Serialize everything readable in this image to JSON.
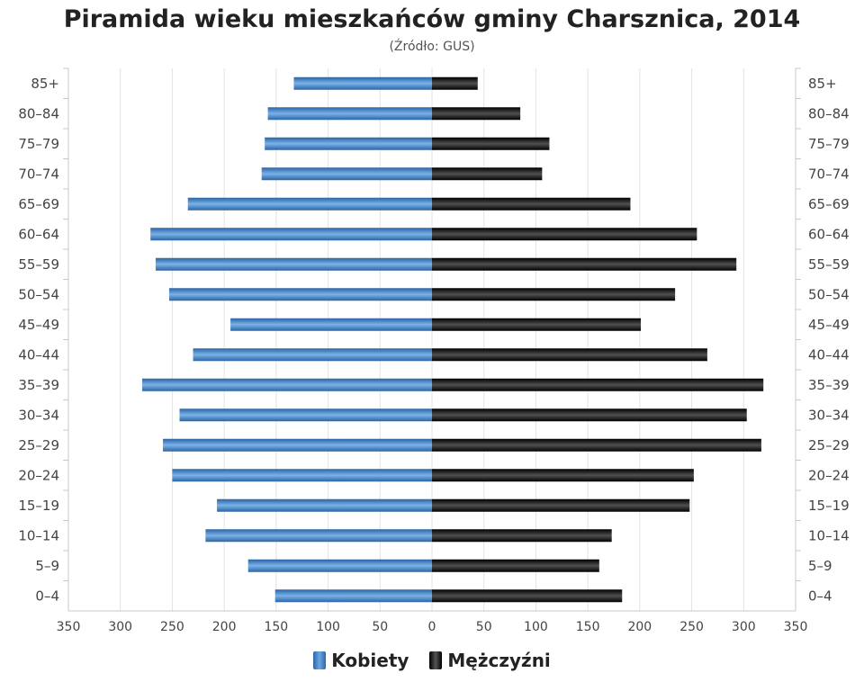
{
  "chart_data": {
    "type": "bar",
    "orientation": "horizontal",
    "title": "Piramida wieku mieszkańców gminy Charsznica, 2014",
    "subtitle": "(Źródło: GUS)",
    "categories": [
      "85+",
      "80–84",
      "75–79",
      "70–74",
      "65–69",
      "60–64",
      "55–59",
      "50–54",
      "45–49",
      "40–44",
      "35–39",
      "30–34",
      "25–29",
      "20–24",
      "15–19",
      "10–14",
      "5–9",
      "0–4"
    ],
    "x_ticks": [
      "350",
      "300",
      "250",
      "200",
      "150",
      "100",
      "50",
      "0",
      "50",
      "100",
      "150",
      "200",
      "250",
      "300",
      "350"
    ],
    "xlim": [
      -350,
      350
    ],
    "grid": true,
    "legend_position": "bottom-center",
    "series": [
      {
        "name": "Kobiety",
        "color": "#3f7fc2",
        "values": [
          133,
          158,
          161,
          164,
          235,
          271,
          266,
          253,
          194,
          230,
          279,
          243,
          259,
          250,
          207,
          218,
          177,
          151
        ]
      },
      {
        "name": "Mężczyźni",
        "color": "#111111",
        "values": [
          44,
          85,
          113,
          106,
          191,
          255,
          293,
          234,
          201,
          265,
          319,
          303,
          317,
          252,
          248,
          173,
          161,
          183
        ]
      }
    ]
  }
}
